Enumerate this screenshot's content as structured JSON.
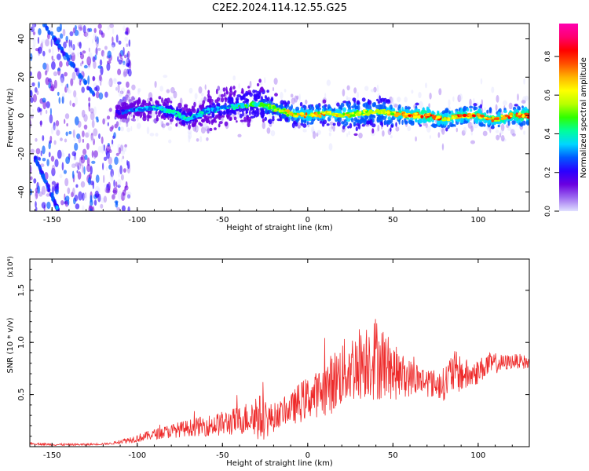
{
  "title": "C2E2.2024.114.12.55.G25",
  "colors": {
    "snr_line": "#ee2a2a",
    "background": "#ffffff",
    "axis": "#000000"
  },
  "chart_data": [
    {
      "type": "heatmap",
      "xlabel": "Height of straight line (km)",
      "ylabel": "Frequency (Hz)",
      "xlim": [
        -163,
        130
      ],
      "ylim": [
        -50,
        48
      ],
      "x_ticks": [
        -150,
        -100,
        -50,
        0,
        50,
        100
      ],
      "y_ticks": [
        -40,
        -20,
        0,
        20,
        40
      ],
      "colorbar": {
        "label": "Normalized spectral amplitude",
        "range": [
          0,
          0.97
        ],
        "ticks": [
          0.0,
          0.2,
          0.4,
          0.6,
          0.8
        ],
        "tick_labels": [
          "0.0",
          "0.2",
          "0.4",
          "0.6",
          "0.8"
        ],
        "colormap": [
          "#e0e0ff",
          "#9e6cf0",
          "#6a00e0",
          "#2a00ff",
          "#005aff",
          "#00d6ff",
          "#00ff9a",
          "#30ff00",
          "#b8ff00",
          "#ffff00",
          "#ffb400",
          "#ff5000",
          "#ff0000",
          "#ff0070",
          "#ff00b0"
        ]
      },
      "ridge": {
        "x": [
          -110,
          -100,
          -90,
          -80,
          -70,
          -60,
          -50,
          -40,
          -30,
          -20,
          -10,
          0,
          10,
          20,
          30,
          40,
          50,
          60,
          70,
          80,
          90,
          100,
          110,
          120,
          130
        ],
        "freq": [
          2,
          3,
          4,
          2,
          -2,
          2,
          4,
          5,
          6,
          4,
          1,
          0,
          1,
          0,
          1,
          2,
          1,
          0,
          0,
          -2,
          0,
          0,
          -2,
          0,
          0
        ],
        "amplitude": [
          0.3,
          0.35,
          0.4,
          0.45,
          0.45,
          0.4,
          0.4,
          0.45,
          0.5,
          0.55,
          0.7,
          0.75,
          0.7,
          0.7,
          0.65,
          0.6,
          0.7,
          0.8,
          0.85,
          0.75,
          0.8,
          0.8,
          0.75,
          0.85,
          0.85
        ]
      },
      "noise_region": {
        "x": [
          -163,
          -110
        ],
        "amplitude": 0.2
      },
      "descending_streaks": [
        {
          "x": [
            -155,
            -125
          ],
          "freq": [
            48,
            10
          ]
        },
        {
          "x": [
            -160,
            -146
          ],
          "freq": [
            -22,
            -50
          ]
        }
      ]
    },
    {
      "type": "line",
      "xlabel": "Height of straight line (km)",
      "ylabel": "SNR (10 * v/v)",
      "y_multiplier": "(x10⁴)",
      "xlim": [
        -163,
        130
      ],
      "ylim": [
        0,
        1.8
      ],
      "x_ticks": [
        -150,
        -100,
        -50,
        0,
        50,
        100
      ],
      "y_ticks": [
        0.5,
        1.0,
        1.5
      ],
      "y_tick_labels": [
        "0.5",
        "1.0",
        "1.5"
      ],
      "series": [
        {
          "x": [
            -163,
            -150,
            -130,
            -115,
            -110,
            -100,
            -90,
            -80,
            -70,
            -60,
            -50,
            -40,
            -35,
            -30,
            -25,
            -20,
            -15,
            -10,
            -5,
            0,
            5,
            10,
            15,
            20,
            25,
            30,
            35,
            40,
            45,
            50,
            55,
            60,
            65,
            70,
            75,
            80,
            85,
            90,
            95,
            100,
            105,
            110,
            115,
            120,
            125,
            130
          ],
          "y": [
            0.03,
            0.02,
            0.02,
            0.03,
            0.05,
            0.08,
            0.12,
            0.15,
            0.18,
            0.2,
            0.22,
            0.25,
            0.28,
            0.3,
            0.25,
            0.28,
            0.33,
            0.36,
            0.42,
            0.47,
            0.5,
            0.55,
            0.62,
            0.7,
            0.75,
            0.8,
            0.85,
            0.85,
            0.8,
            0.72,
            0.68,
            0.66,
            0.65,
            0.62,
            0.6,
            0.6,
            0.72,
            0.7,
            0.68,
            0.72,
            0.78,
            0.8,
            0.8,
            0.82,
            0.82,
            0.8
          ],
          "noise": [
            0.01,
            0.01,
            0.01,
            0.01,
            0.02,
            0.04,
            0.05,
            0.07,
            0.08,
            0.1,
            0.12,
            0.14,
            0.16,
            0.25,
            0.18,
            0.14,
            0.12,
            0.14,
            0.2,
            0.2,
            0.22,
            0.26,
            0.3,
            0.32,
            0.34,
            0.36,
            0.38,
            0.42,
            0.34,
            0.28,
            0.22,
            0.18,
            0.16,
            0.14,
            0.14,
            0.16,
            0.22,
            0.18,
            0.14,
            0.12,
            0.12,
            0.1,
            0.08,
            0.07,
            0.07,
            0.07
          ]
        }
      ]
    }
  ]
}
